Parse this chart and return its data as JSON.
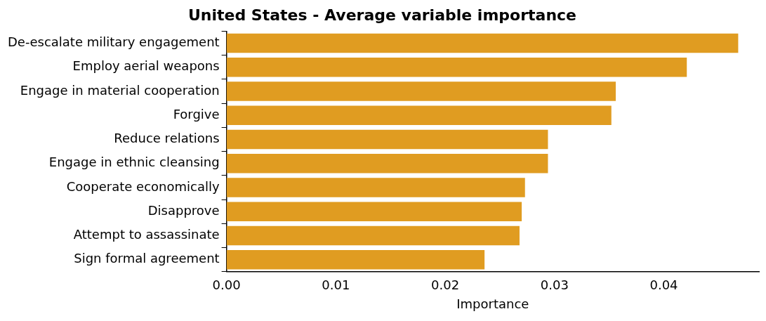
{
  "chart_data": {
    "type": "bar",
    "orientation": "horizontal",
    "title": "United States - Average variable importance",
    "xlabel": "Importance",
    "categories": [
      "De-escalate military engagement",
      "Employ aerial weapons",
      "Engage in material cooperation",
      "Forgive",
      "Reduce relations",
      "Engage in ethnic cleansing",
      "Cooperate economically",
      "Disapprove",
      "Attempt to assassinate",
      "Sign formal agreement"
    ],
    "values": [
      0.0468,
      0.0421,
      0.0356,
      0.0352,
      0.0294,
      0.0294,
      0.0273,
      0.027,
      0.0268,
      0.0236
    ],
    "color": "#e09c21",
    "xlim": [
      0,
      0.0487
    ],
    "xticks": [
      {
        "value": 0,
        "label": "0.00"
      },
      0.01,
      0.02,
      0.03,
      0.04
    ],
    "grid": false,
    "legend": false
  }
}
